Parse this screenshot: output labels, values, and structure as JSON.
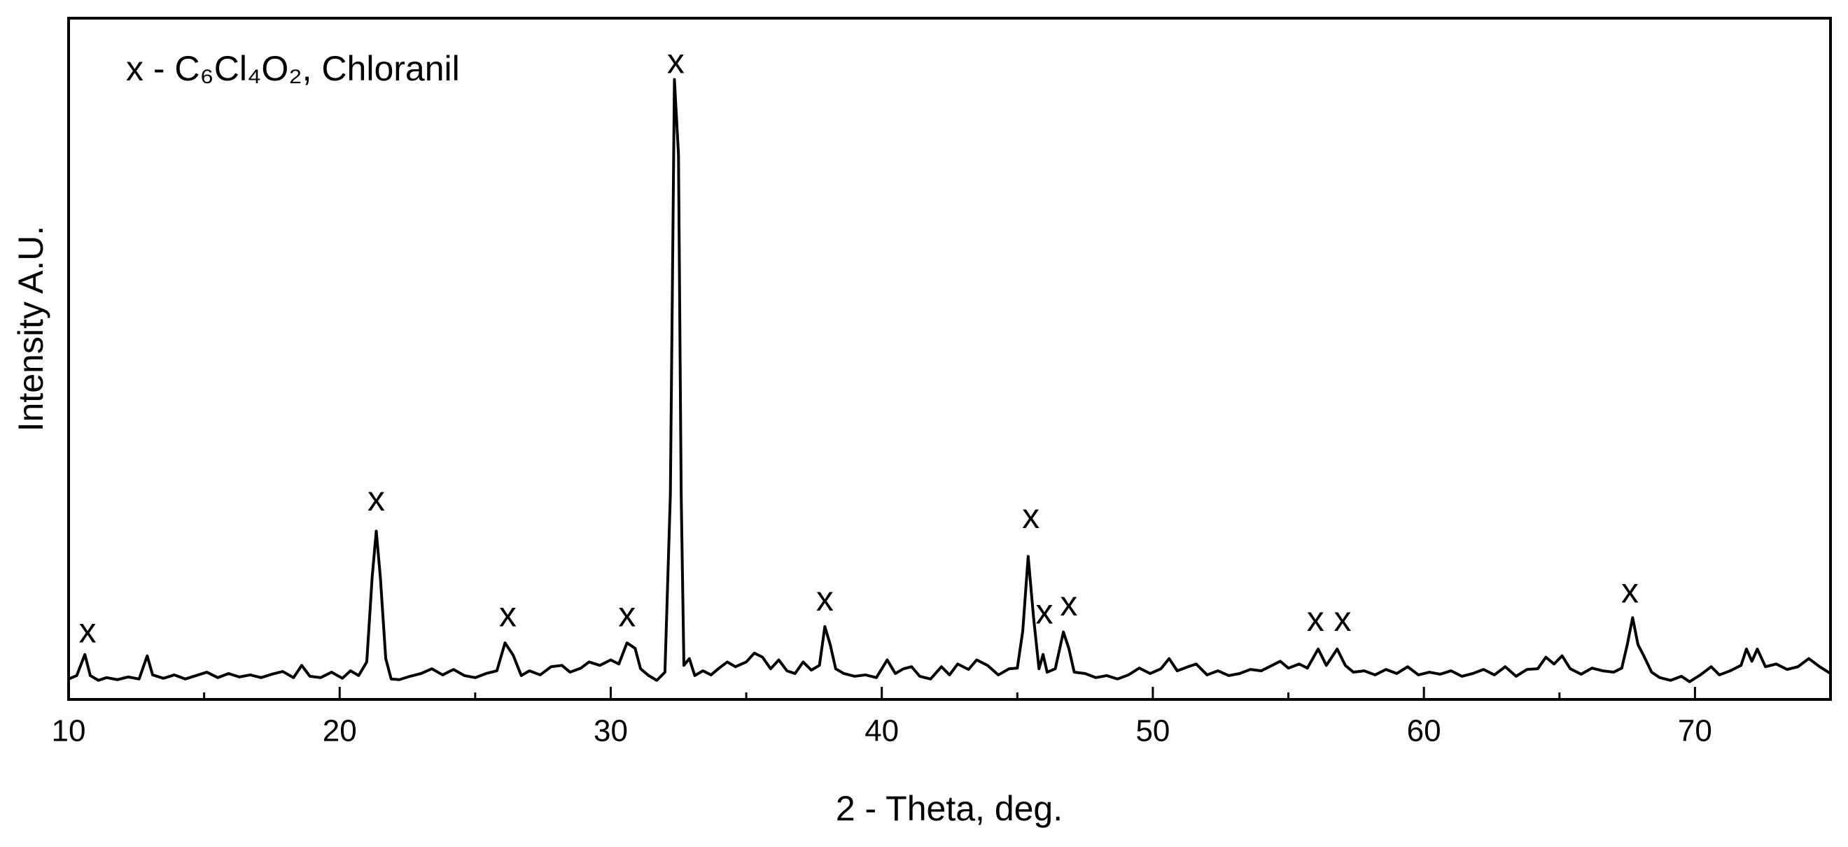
{
  "chart_data": {
    "type": "line",
    "xlabel": "2 - Theta, deg.",
    "ylabel": "Intensity A.U.",
    "legend_text": "x - C₆Cl₄O₂, Chloranil",
    "color": "#000000",
    "xlim": [
      10,
      75
    ],
    "ylim": [
      0,
      100
    ],
    "xticks": [
      10,
      20,
      30,
      40,
      50,
      60,
      70
    ],
    "xminorticks": [
      15,
      25,
      35,
      45,
      55,
      65,
      75
    ],
    "x": [
      10.0,
      10.3,
      10.6,
      10.8,
      11.1,
      11.4,
      11.8,
      12.2,
      12.6,
      12.9,
      13.1,
      13.5,
      13.9,
      14.3,
      14.7,
      15.1,
      15.5,
      15.9,
      16.3,
      16.7,
      17.1,
      17.5,
      17.9,
      18.3,
      18.6,
      18.9,
      19.3,
      19.7,
      20.1,
      20.4,
      20.7,
      21.0,
      21.2,
      21.35,
      21.5,
      21.7,
      21.9,
      22.2,
      22.6,
      23.0,
      23.4,
      23.8,
      24.2,
      24.6,
      25.0,
      25.4,
      25.8,
      26.1,
      26.4,
      26.7,
      27.0,
      27.4,
      27.8,
      28.2,
      28.5,
      28.9,
      29.2,
      29.6,
      30.0,
      30.3,
      30.6,
      30.9,
      31.1,
      31.4,
      31.7,
      32.0,
      32.2,
      32.35,
      32.5,
      32.6,
      32.7,
      32.9,
      33.1,
      33.4,
      33.7,
      34.0,
      34.3,
      34.6,
      35.0,
      35.3,
      35.6,
      35.9,
      36.2,
      36.5,
      36.8,
      37.1,
      37.4,
      37.7,
      37.9,
      38.1,
      38.3,
      38.6,
      39.0,
      39.4,
      39.8,
      40.2,
      40.5,
      40.8,
      41.1,
      41.4,
      41.8,
      42.2,
      42.5,
      42.8,
      43.2,
      43.5,
      43.9,
      44.3,
      44.7,
      45.0,
      45.2,
      45.4,
      45.6,
      45.8,
      45.95,
      46.1,
      46.4,
      46.7,
      46.9,
      47.1,
      47.5,
      47.9,
      48.3,
      48.7,
      49.1,
      49.5,
      49.9,
      50.3,
      50.6,
      50.9,
      51.3,
      51.6,
      52.0,
      52.4,
      52.8,
      53.2,
      53.6,
      54.0,
      54.4,
      54.7,
      55.0,
      55.4,
      55.7,
      56.1,
      56.4,
      56.8,
      57.1,
      57.4,
      57.8,
      58.2,
      58.6,
      59.0,
      59.4,
      59.8,
      60.2,
      60.6,
      61.0,
      61.4,
      61.8,
      62.2,
      62.6,
      63.0,
      63.4,
      63.8,
      64.2,
      64.5,
      64.8,
      65.1,
      65.4,
      65.8,
      66.2,
      66.6,
      67.0,
      67.3,
      67.5,
      67.7,
      67.9,
      68.1,
      68.4,
      68.7,
      69.1,
      69.5,
      69.8,
      70.2,
      70.6,
      70.9,
      71.3,
      71.7,
      71.9,
      72.1,
      72.3,
      72.6,
      73.0,
      73.4,
      73.8,
      74.2,
      74.6,
      75.0
    ],
    "values": [
      3.0,
      3.5,
      6.6,
      3.5,
      2.8,
      3.2,
      2.9,
      3.3,
      3.0,
      6.4,
      3.6,
      3.1,
      3.6,
      3.0,
      3.5,
      4.0,
      3.2,
      3.8,
      3.3,
      3.6,
      3.2,
      3.7,
      4.1,
      3.2,
      5.0,
      3.4,
      3.2,
      4.0,
      3.1,
      4.2,
      3.5,
      5.5,
      18,
      24.7,
      18,
      6,
      3.0,
      2.9,
      3.4,
      3.8,
      4.5,
      3.6,
      4.4,
      3.5,
      3.2,
      3.8,
      4.2,
      8.3,
      6.5,
      3.5,
      4.2,
      3.6,
      4.8,
      5.0,
      4.0,
      4.6,
      5.5,
      5.0,
      5.8,
      5.2,
      8.3,
      7.5,
      4.5,
      3.5,
      2.8,
      4.0,
      30,
      91,
      80,
      30,
      5,
      6.0,
      3.5,
      4.2,
      3.6,
      4.6,
      5.5,
      4.8,
      5.5,
      6.8,
      6.2,
      4.5,
      5.8,
      4.2,
      3.8,
      5.5,
      4.3,
      5.0,
      10.7,
      8,
      4.5,
      3.8,
      3.4,
      3.6,
      3.2,
      5.8,
      3.8,
      4.5,
      4.8,
      3.4,
      3.0,
      4.8,
      3.6,
      5.2,
      4.4,
      5.8,
      5.0,
      3.6,
      4.5,
      4.6,
      10,
      21,
      12,
      4.5,
      6.6,
      4.0,
      4.5,
      9.9,
      7.5,
      4.0,
      3.8,
      3.2,
      3.5,
      3.0,
      3.6,
      4.6,
      3.8,
      4.5,
      6.0,
      4.2,
      4.8,
      5.2,
      3.6,
      4.2,
      3.5,
      3.8,
      4.4,
      4.2,
      5.0,
      5.6,
      4.6,
      5.2,
      4.6,
      7.4,
      5.0,
      7.4,
      5.0,
      4.0,
      4.2,
      3.6,
      4.4,
      3.8,
      4.8,
      3.6,
      4.0,
      3.7,
      4.2,
      3.4,
      3.8,
      4.4,
      3.6,
      4.8,
      3.4,
      4.4,
      4.5,
      6.2,
      5.2,
      6.4,
      4.5,
      3.7,
      4.6,
      4.2,
      4.0,
      4.6,
      8,
      12,
      8,
      6.5,
      4.0,
      3.2,
      2.8,
      3.4,
      2.6,
      3.6,
      4.8,
      3.6,
      4.2,
      5.0,
      7.4,
      5.6,
      7.4,
      4.8,
      5.2,
      4.4,
      4.8,
      6.0,
      4.8,
      3.8
    ],
    "annotations": [
      {
        "text": "x",
        "x": 10.7,
        "y": 9.7
      },
      {
        "text": "x",
        "x": 21.35,
        "y": 29.1
      },
      {
        "text": "x",
        "x": 26.2,
        "y": 12.1
      },
      {
        "text": "x",
        "x": 30.6,
        "y": 12.1
      },
      {
        "text": "x",
        "x": 32.4,
        "y": 93.3
      },
      {
        "text": "x",
        "x": 37.9,
        "y": 14.4
      },
      {
        "text": "x",
        "x": 45.5,
        "y": 26.5
      },
      {
        "text": "x",
        "x": 46.0,
        "y": 12.5
      },
      {
        "text": "x",
        "x": 46.9,
        "y": 13.7
      },
      {
        "text": "x",
        "x": 56.0,
        "y": 11.4
      },
      {
        "text": "x",
        "x": 57.0,
        "y": 11.4
      },
      {
        "text": "x",
        "x": 67.6,
        "y": 15.6
      }
    ]
  }
}
